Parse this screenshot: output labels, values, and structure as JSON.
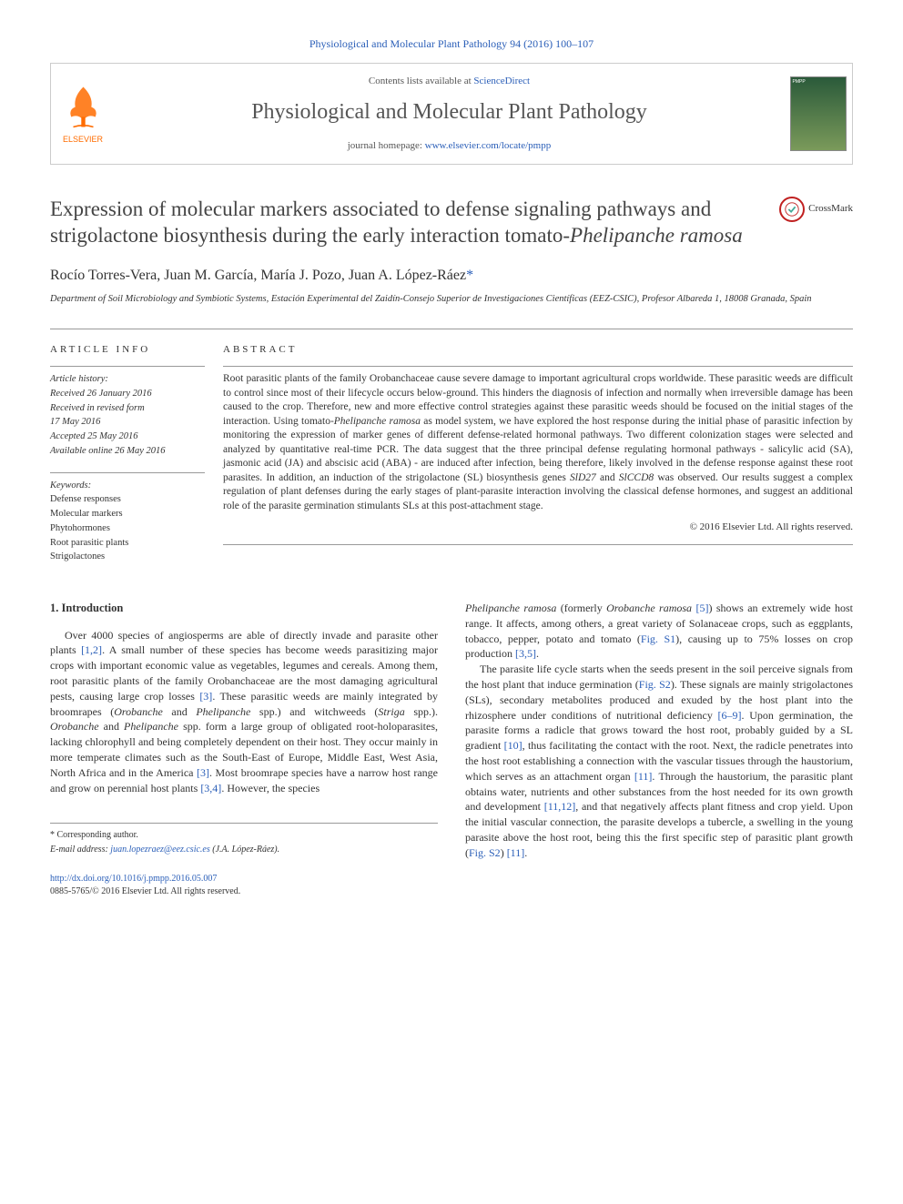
{
  "citation": "Physiological and Molecular Plant Pathology 94 (2016) 100–107",
  "header": {
    "contents_prefix": "Contents lists available at ",
    "contents_link": "ScienceDirect",
    "journal_name": "Physiological and Molecular Plant Pathology",
    "homepage_prefix": "journal homepage: ",
    "homepage_url": "www.elsevier.com/locate/pmpp",
    "elsevier_label": "ELSEVIER",
    "cover_label": "PMPP"
  },
  "crossmark_label": "CrossMark",
  "title_html": "Expression of molecular markers associated to defense signaling pathways and strigolactone biosynthesis during the early interaction tomato-<em>Phelipanche ramosa</em>",
  "authors": "Rocío Torres-Vera, Juan M. García, María J. Pozo, Juan A. López-Ráez",
  "corr_marker": "*",
  "affiliation": "Department of Soil Microbiology and Symbiotic Systems, Estación Experimental del Zaidín-Consejo Superior de Investigaciones Científicas (EEZ-CSIC), Profesor Albareda 1, 18008 Granada, Spain",
  "article_info": {
    "heading": "ARTICLE INFO",
    "history_label": "Article history:",
    "received": "Received 26 January 2016",
    "revised1": "Received in revised form",
    "revised2": "17 May 2016",
    "accepted": "Accepted 25 May 2016",
    "online": "Available online 26 May 2016",
    "keywords_label": "Keywords:",
    "keywords": [
      "Defense responses",
      "Molecular markers",
      "Phytohormones",
      "Root parasitic plants",
      "Strigolactones"
    ]
  },
  "abstract": {
    "heading": "ABSTRACT",
    "text_html": "Root parasitic plants of the family Orobanchaceae cause severe damage to important agricultural crops worldwide. These parasitic weeds are difficult to control since most of their lifecycle occurs below-ground. This hinders the diagnosis of infection and normally when irreversible damage has been caused to the crop. Therefore, new and more effective control strategies against these parasitic weeds should be focused on the initial stages of the interaction. Using tomato-<em>Phelipanche ramosa</em> as model system, we have explored the host response during the initial phase of parasitic infection by monitoring the expression of marker genes of different defense-related hormonal pathways. Two different colonization stages were selected and analyzed by quantitative real-time PCR. The data suggest that the three principal defense regulating hormonal pathways - salicylic acid (SA), jasmonic acid (JA) and abscisic acid (ABA) - are induced after infection, being therefore, likely involved in the defense response against these root parasites. In addition, an induction of the strigolactone (SL) biosynthesis genes <em>SlD27</em> and <em>SlCCD8</em> was observed. Our results suggest a complex regulation of plant defenses during the early stages of plant-parasite interaction involving the classical defense hormones, and suggest an additional role of the parasite germination stimulants SLs at this post-attachment stage.",
    "copyright": "© 2016 Elsevier Ltd. All rights reserved."
  },
  "intro": {
    "heading": "1. Introduction",
    "col1_html": "Over 4000 species of angiosperms are able of directly invade and parasite other plants <span class=\"ref-link\">[1,2]</span>. A small number of these species has become weeds parasitizing major crops with important economic value as vegetables, legumes and cereals. Among them, root parasitic plants of the family Orobanchaceae are the most damaging agricultural pests, causing large crop losses <span class=\"ref-link\">[3]</span>. These parasitic weeds are mainly integrated by broomrapes (<em>Orobanche</em> and <em>Phelipanche</em> spp.) and witchweeds (<em>Striga</em> spp.). <em>Orobanche</em> and <em>Phelipanche</em> spp. form a large group of obligated root-holoparasites, lacking chlorophyll and being completely dependent on their host. They occur mainly in more temperate climates such as the South-East of Europe, Middle East, West Asia, North Africa and in the America <span class=\"ref-link\">[3]</span>. Most broomrape species have a narrow host range and grow on perennial host plants <span class=\"ref-link\">[3,4]</span>. However, the species",
    "col2_p1_html": "<em>Phelipanche ramosa</em> (formerly <em>Orobanche ramosa</em> <span class=\"ref-link\">[5]</span>) shows an extremely wide host range. It affects, among others, a great variety of Solanaceae crops, such as eggplants, tobacco, pepper, potato and tomato (<span class=\"ref-link\">Fig. S1</span>), causing up to 75% losses on crop production <span class=\"ref-link\">[3,5]</span>.",
    "col2_p2_html": "The parasite life cycle starts when the seeds present in the soil perceive signals from the host plant that induce germination (<span class=\"ref-link\">Fig. S2</span>). These signals are mainly strigolactones (SLs), secondary metabolites produced and exuded by the host plant into the rhizosphere under conditions of nutritional deficiency <span class=\"ref-link\">[6–9]</span>. Upon germination, the parasite forms a radicle that grows toward the host root, probably guided by a SL gradient <span class=\"ref-link\">[10]</span>, thus facilitating the contact with the root. Next, the radicle penetrates into the host root establishing a connection with the vascular tissues through the haustorium, which serves as an attachment organ <span class=\"ref-link\">[11]</span>. Through the haustorium, the parasitic plant obtains water, nutrients and other substances from the host needed for its own growth and development <span class=\"ref-link\">[11,12]</span>, and that negatively affects plant fitness and crop yield. Upon the initial vascular connection, the parasite develops a tubercle, a swelling in the young parasite above the host root, being this the first specific step of parasitic plant growth (<span class=\"ref-link\">Fig. S2</span>) <span class=\"ref-link\">[11]</span>."
  },
  "footer": {
    "corr_label": "* Corresponding author.",
    "email_label": "E-mail address: ",
    "email": "juan.lopezraez@eez.csic.es",
    "email_author": " (J.A. López-Ráez).",
    "doi": "http://dx.doi.org/10.1016/j.pmpp.2016.05.007",
    "issn_line": "0885-5765/© 2016 Elsevier Ltd. All rights reserved."
  },
  "colors": {
    "link": "#2b5fb8",
    "elsevier_orange": "#ff6c00",
    "text": "#333333",
    "border": "#999999"
  }
}
